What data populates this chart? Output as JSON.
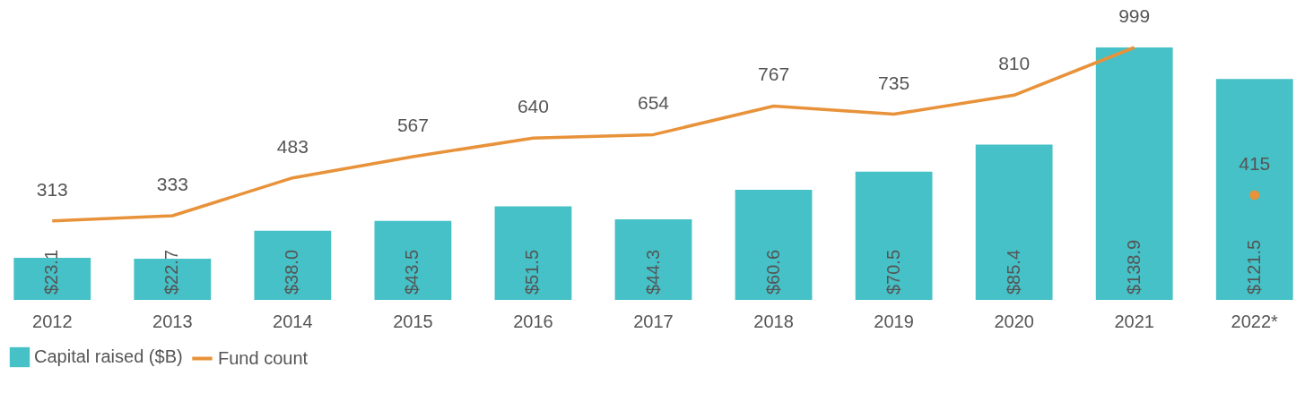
{
  "chart_data": {
    "type": "bar",
    "categories": [
      "2012",
      "2013",
      "2014",
      "2015",
      "2016",
      "2017",
      "2018",
      "2019",
      "2020",
      "2021",
      "2022*"
    ],
    "series": [
      {
        "name": "Capital raised ($B)",
        "color": "#45c1c7",
        "values": [
          23.1,
          22.7,
          38.0,
          43.5,
          51.5,
          44.3,
          60.6,
          70.5,
          85.4,
          138.9,
          121.5
        ],
        "value_labels": [
          "$23.1",
          "$22.7",
          "$38.0",
          "$43.5",
          "$51.5",
          "$44.3",
          "$60.6",
          "$70.5",
          "$85.4",
          "$138.9",
          "$121.5"
        ]
      },
      {
        "name": "Fund count",
        "type": "line",
        "axis": "y2",
        "color": "#e8923a",
        "values": [
          313,
          333,
          483,
          567,
          640,
          654,
          767,
          735,
          810,
          999,
          null
        ],
        "value_labels": [
          "313",
          "333",
          "483",
          "567",
          "640",
          "654",
          "767",
          "735",
          "810",
          "999",
          null
        ]
      },
      {
        "type": "scatter",
        "axis": "y2",
        "marker": "circle",
        "color": "#e8923a",
        "values": [
          null,
          null,
          null,
          null,
          null,
          null,
          null,
          null,
          null,
          null,
          415
        ],
        "value_labels": [
          null,
          null,
          null,
          null,
          null,
          null,
          null,
          null,
          null,
          null,
          "415"
        ]
      }
    ],
    "grid": false,
    "legend": "bottom"
  }
}
